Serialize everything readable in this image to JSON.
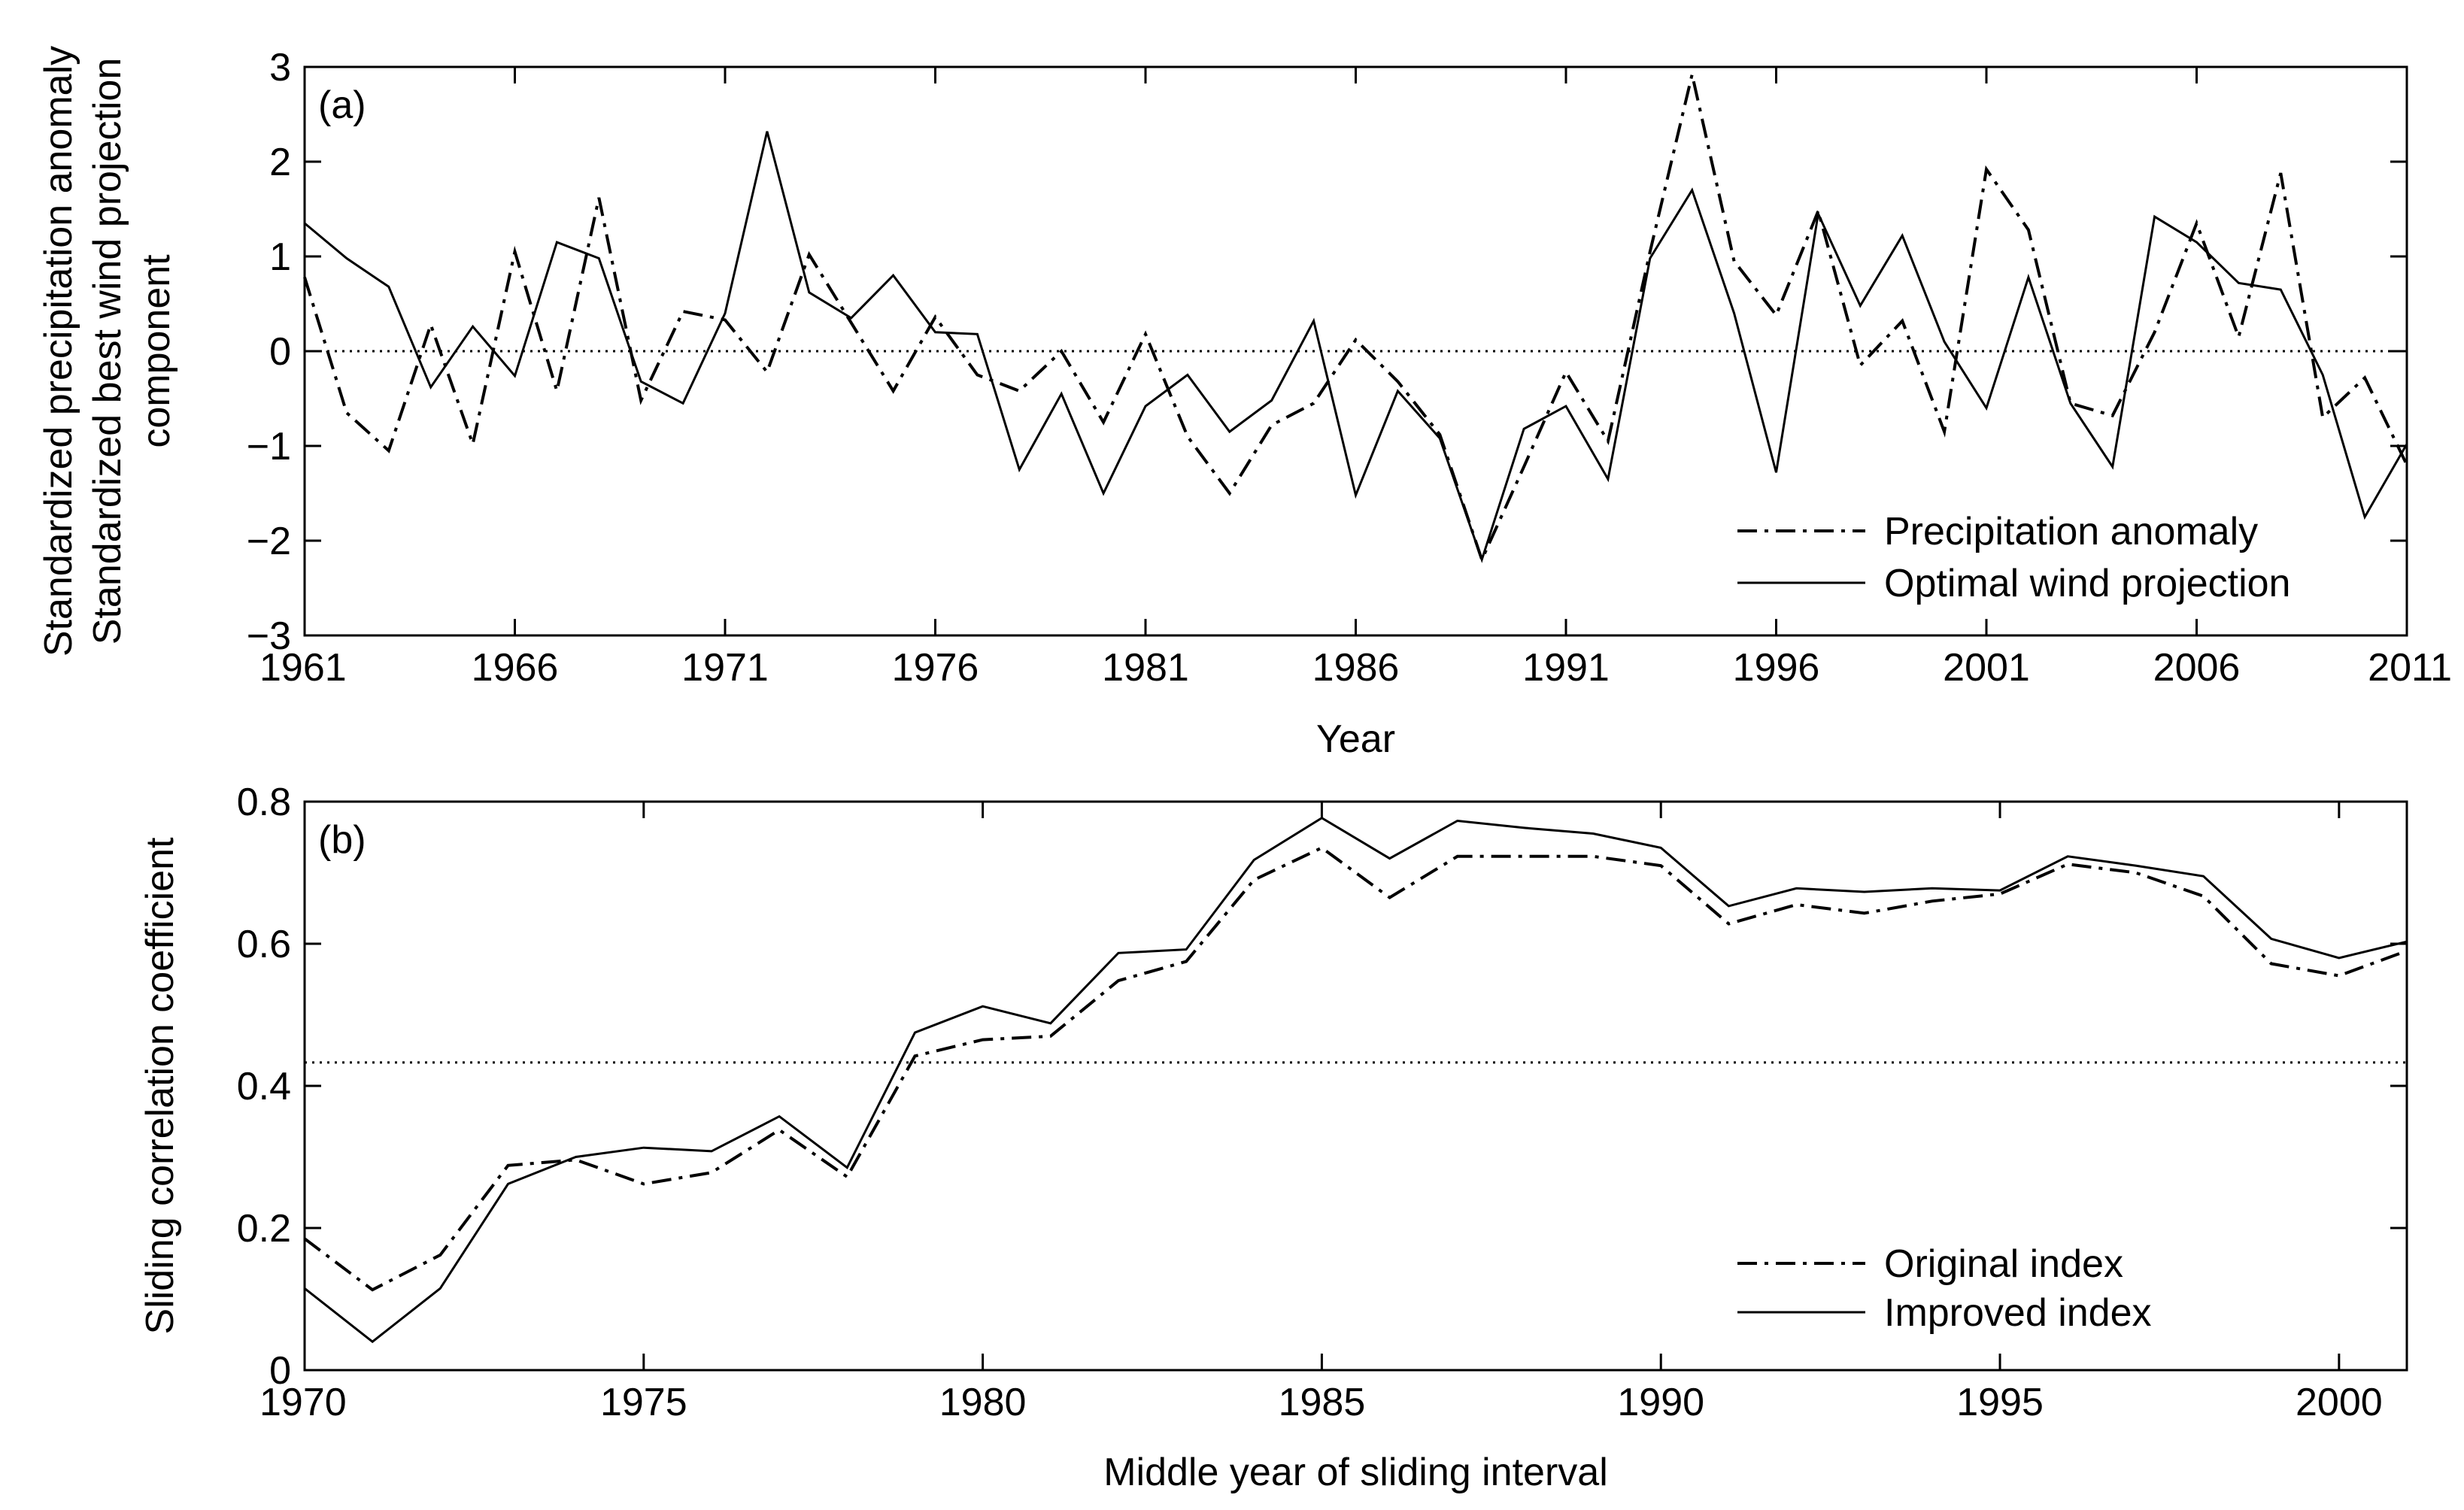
{
  "chart_data": [
    {
      "panel_label": "(a)",
      "type": "line",
      "xlabel": "Year",
      "ylabel_lines": [
        "Standardized precipitation anomaly",
        "Standardized best wind projection",
        "component"
      ],
      "xlim": [
        1961,
        2011
      ],
      "ylim": [
        -3,
        3
      ],
      "xticks": [
        1961,
        1966,
        1971,
        1976,
        1981,
        1986,
        1991,
        1996,
        2001,
        2006,
        2011
      ],
      "yticks": [
        -3,
        -2,
        -1,
        0,
        1,
        2,
        3
      ],
      "reference_line": 0,
      "legend_position": "lower-right",
      "x": [
        1961,
        1962,
        1963,
        1964,
        1965,
        1966,
        1967,
        1968,
        1969,
        1970,
        1971,
        1972,
        1973,
        1974,
        1975,
        1976,
        1977,
        1978,
        1979,
        1980,
        1981,
        1982,
        1983,
        1984,
        1985,
        1986,
        1987,
        1988,
        1989,
        1990,
        1991,
        1992,
        1993,
        1994,
        1995,
        1996,
        1997,
        1998,
        1999,
        2000,
        2001,
        2002,
        2003,
        2004,
        2005,
        2006,
        2007,
        2008,
        2009,
        2010,
        2011
      ],
      "series": [
        {
          "name": "Precipitation anomaly",
          "style": "dash-dot",
          "values": [
            0.78,
            -0.65,
            -1.05,
            0.28,
            -0.98,
            1.05,
            -0.42,
            1.62,
            -0.52,
            0.42,
            0.33,
            -0.22,
            1.02,
            0.3,
            -0.42,
            0.36,
            -0.25,
            -0.42,
            0.0,
            -0.75,
            0.18,
            -0.9,
            -1.5,
            -0.78,
            -0.55,
            0.12,
            -0.32,
            -0.88,
            -2.2,
            -1.22,
            -0.22,
            -0.95,
            1.05,
            2.92,
            0.95,
            0.38,
            1.48,
            -0.15,
            0.32,
            -0.85,
            1.92,
            1.28,
            -0.55,
            -0.68,
            0.2,
            1.35,
            0.15,
            1.88,
            -0.7,
            -0.28,
            -1.2
          ]
        },
        {
          "name": "Optimal wind projection",
          "style": "solid",
          "values": [
            1.35,
            0.98,
            0.68,
            -0.38,
            0.26,
            -0.26,
            1.15,
            0.98,
            -0.32,
            -0.55,
            0.4,
            2.32,
            0.62,
            0.35,
            0.8,
            0.2,
            0.18,
            -1.25,
            -0.45,
            -1.5,
            -0.58,
            -0.25,
            -0.85,
            -0.52,
            0.32,
            -1.52,
            -0.42,
            -0.92,
            -2.2,
            -0.82,
            -0.58,
            -1.35,
            0.98,
            1.7,
            0.4,
            -1.28,
            1.45,
            0.48,
            1.22,
            0.1,
            -0.6,
            0.78,
            -0.55,
            -1.22,
            1.42,
            1.15,
            0.72,
            0.65,
            -0.25,
            -1.75,
            -0.98
          ]
        }
      ]
    },
    {
      "panel_label": "(b)",
      "type": "line",
      "xlabel": "Middle year of sliding interval",
      "ylabel_lines": [
        "Sliding correlation coefficient"
      ],
      "xlim": [
        1970,
        2001
      ],
      "ylim": [
        0,
        0.8
      ],
      "xticks": [
        1970,
        1975,
        1980,
        1985,
        1990,
        1995,
        2000
      ],
      "yticks": [
        0,
        0.2,
        0.4,
        0.6,
        0.8
      ],
      "reference_line": 0.433,
      "legend_position": "lower-right",
      "x": [
        1970,
        1971,
        1972,
        1973,
        1974,
        1975,
        1976,
        1977,
        1978,
        1979,
        1980,
        1981,
        1982,
        1983,
        1984,
        1985,
        1986,
        1987,
        1988,
        1989,
        1990,
        1991,
        1992,
        1993,
        1994,
        1995,
        1996,
        1997,
        1998,
        1999,
        2000,
        2001
      ],
      "series": [
        {
          "name": "Original index",
          "style": "dash-dot",
          "values": [
            0.185,
            0.113,
            0.162,
            0.288,
            0.296,
            0.262,
            0.278,
            0.338,
            0.272,
            0.442,
            0.465,
            0.47,
            0.548,
            0.575,
            0.69,
            0.735,
            0.665,
            0.723,
            0.723,
            0.723,
            0.71,
            0.628,
            0.655,
            0.643,
            0.66,
            0.67,
            0.712,
            0.7,
            0.667,
            0.572,
            0.555,
            0.59
          ]
        },
        {
          "name": "Improved index",
          "style": "solid",
          "values": [
            0.115,
            0.04,
            0.115,
            0.262,
            0.3,
            0.313,
            0.308,
            0.357,
            0.285,
            0.475,
            0.512,
            0.488,
            0.587,
            0.592,
            0.718,
            0.777,
            0.72,
            0.773,
            0.763,
            0.755,
            0.735,
            0.653,
            0.678,
            0.673,
            0.678,
            0.675,
            0.723,
            0.71,
            0.695,
            0.607,
            0.58,
            0.603
          ]
        }
      ]
    }
  ]
}
